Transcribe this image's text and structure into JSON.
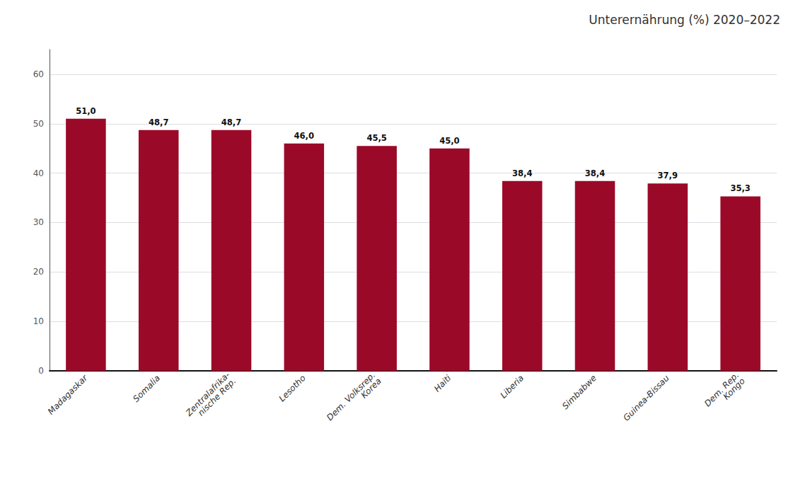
{
  "chart_data": {
    "type": "bar",
    "title": "Unterernährung (%) 2020–2022",
    "categories": [
      "Madagaskar",
      "Somalia",
      "Zentralafrika-\nnische Rep.",
      "Lesotho",
      "Dem. Volksrep.\nKorea",
      "Haiti",
      "Liberia",
      "Simbabwe",
      "Guinea-Bissau",
      "Dem. Rep.\nKongo"
    ],
    "values": [
      51.0,
      48.7,
      48.7,
      46.0,
      45.5,
      45.0,
      38.4,
      38.4,
      37.9,
      35.3
    ],
    "value_labels": [
      "51,0",
      "48,7",
      "48,7",
      "46,0",
      "45,5",
      "45,0",
      "38,4",
      "38,4",
      "37,9",
      "35,3"
    ],
    "data_labels": true,
    "color": "#9B0929",
    "ylim": [
      0,
      65
    ],
    "yticks": [
      0,
      10,
      20,
      30,
      40,
      50,
      60
    ],
    "grid": true
  }
}
